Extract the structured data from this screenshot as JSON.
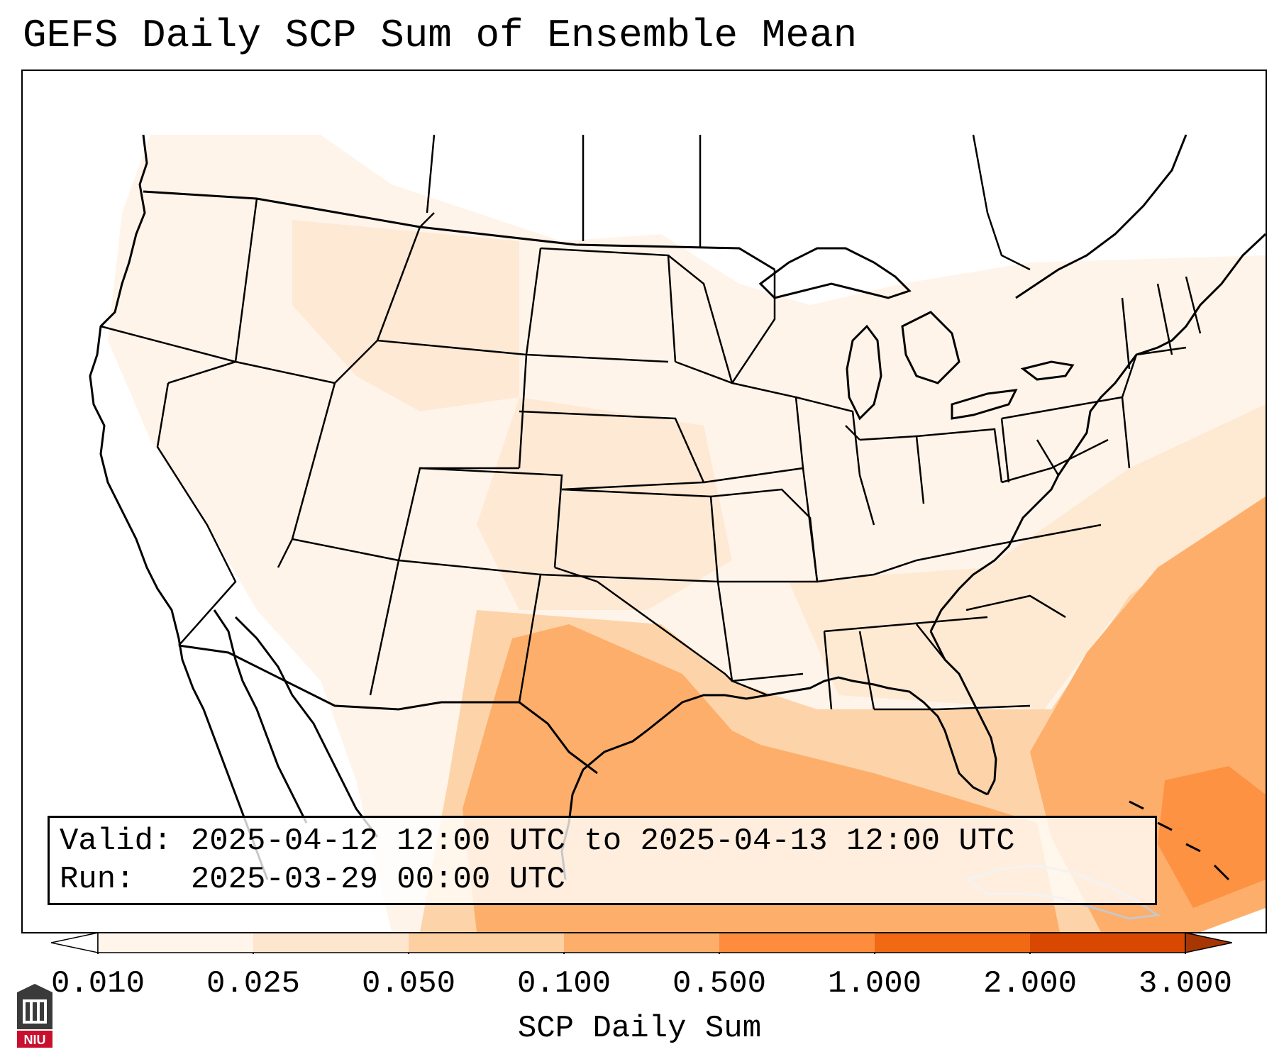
{
  "title": "GEFS Daily SCP Sum of Ensemble Mean",
  "info": {
    "valid_label": "Valid:",
    "valid_value": "2025-04-12 12:00 UTC to 2025-04-13 12:00 UTC",
    "run_label": "Run:",
    "run_value": "2025-03-29 00:00 UTC"
  },
  "colorbar": {
    "label": "SCP Daily Sum",
    "ticks": [
      "0.010",
      "0.025",
      "0.050",
      "0.100",
      "0.500",
      "1.000",
      "2.000",
      "3.000"
    ],
    "colors": [
      "#fff5eb",
      "#fee6ce",
      "#fdd0a2",
      "#fdae6b",
      "#fd8d3c",
      "#f16913",
      "#d94801",
      "#a63603"
    ],
    "extend": "both"
  },
  "logo": {
    "text": "NIU",
    "accent": "#c8102e"
  },
  "map": {
    "projection": "lambert-conformal",
    "region": "CONUS",
    "field": "SCP daily sum"
  }
}
